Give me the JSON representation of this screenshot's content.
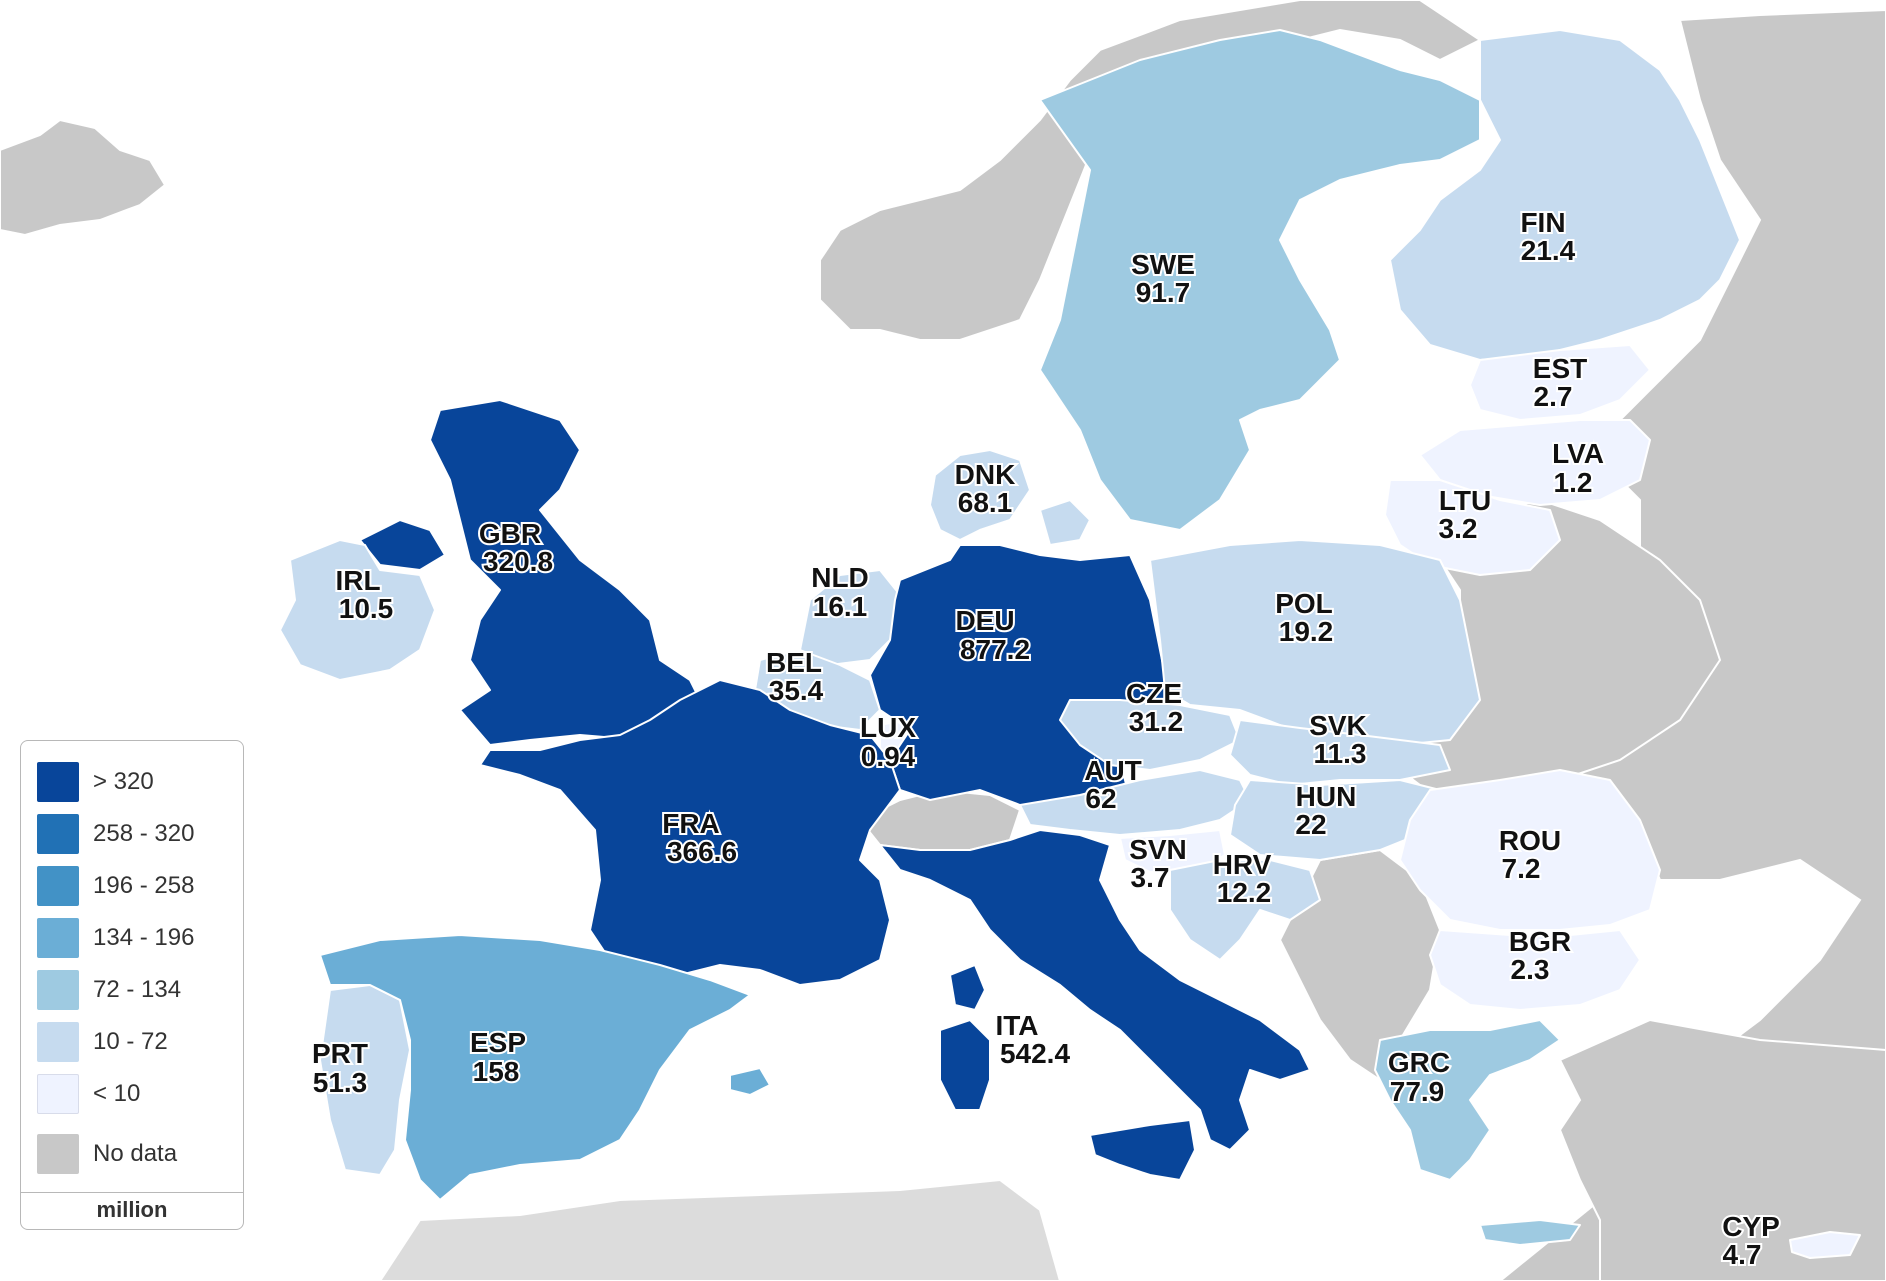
{
  "colors": {
    "gt320": "#08459a",
    "c258_320": "#2171b5",
    "c196_258": "#4292c6",
    "c134_196": "#6baed6",
    "c72_134": "#9ecae1",
    "c10_72": "#c6dbef",
    "lt10": "#eff3ff",
    "nodata": "#c8c8c8"
  },
  "legend": {
    "items": [
      {
        "label": "> 320",
        "color": "#08459a"
      },
      {
        "label": "258 - 320",
        "color": "#2171b5"
      },
      {
        "label": "196 - 258",
        "color": "#4292c6"
      },
      {
        "label": "134 - 196",
        "color": "#6baed6"
      },
      {
        "label": "72 - 134",
        "color": "#9ecae1"
      },
      {
        "label": "10 - 72",
        "color": "#c6dbef"
      },
      {
        "label": "< 10",
        "color": "#eff3ff"
      },
      {
        "label": "No data",
        "color": "#c8c8c8"
      }
    ],
    "unit": "million"
  },
  "countries": [
    {
      "code": "SWE",
      "value": "91.7"
    },
    {
      "code": "FIN",
      "value": "21.4"
    },
    {
      "code": "EST",
      "value": "2.7"
    },
    {
      "code": "LVA",
      "value": "1.2"
    },
    {
      "code": "LTU",
      "value": "3.2"
    },
    {
      "code": "DNK",
      "value": "68.1"
    },
    {
      "code": "GBR",
      "value": "320.8"
    },
    {
      "code": "IRL",
      "value": "10.5"
    },
    {
      "code": "NLD",
      "value": "16.1"
    },
    {
      "code": "BEL",
      "value": "35.4"
    },
    {
      "code": "LUX",
      "value": "0.94"
    },
    {
      "code": "DEU",
      "value": "877.2"
    },
    {
      "code": "POL",
      "value": "19.2"
    },
    {
      "code": "CZE",
      "value": "31.2"
    },
    {
      "code": "SVK",
      "value": "11.3"
    },
    {
      "code": "AUT",
      "value": "62"
    },
    {
      "code": "HUN",
      "value": "22"
    },
    {
      "code": "FRA",
      "value": "366.6"
    },
    {
      "code": "SVN",
      "value": "3.7"
    },
    {
      "code": "HRV",
      "value": "12.2"
    },
    {
      "code": "ROU",
      "value": "7.2"
    },
    {
      "code": "BGR",
      "value": "2.3"
    },
    {
      "code": "ITA",
      "value": "542.4"
    },
    {
      "code": "PRT",
      "value": "51.3"
    },
    {
      "code": "ESP",
      "value": "158"
    },
    {
      "code": "GRC",
      "value": "77.9"
    },
    {
      "code": "CYP",
      "value": "4.7"
    }
  ]
}
